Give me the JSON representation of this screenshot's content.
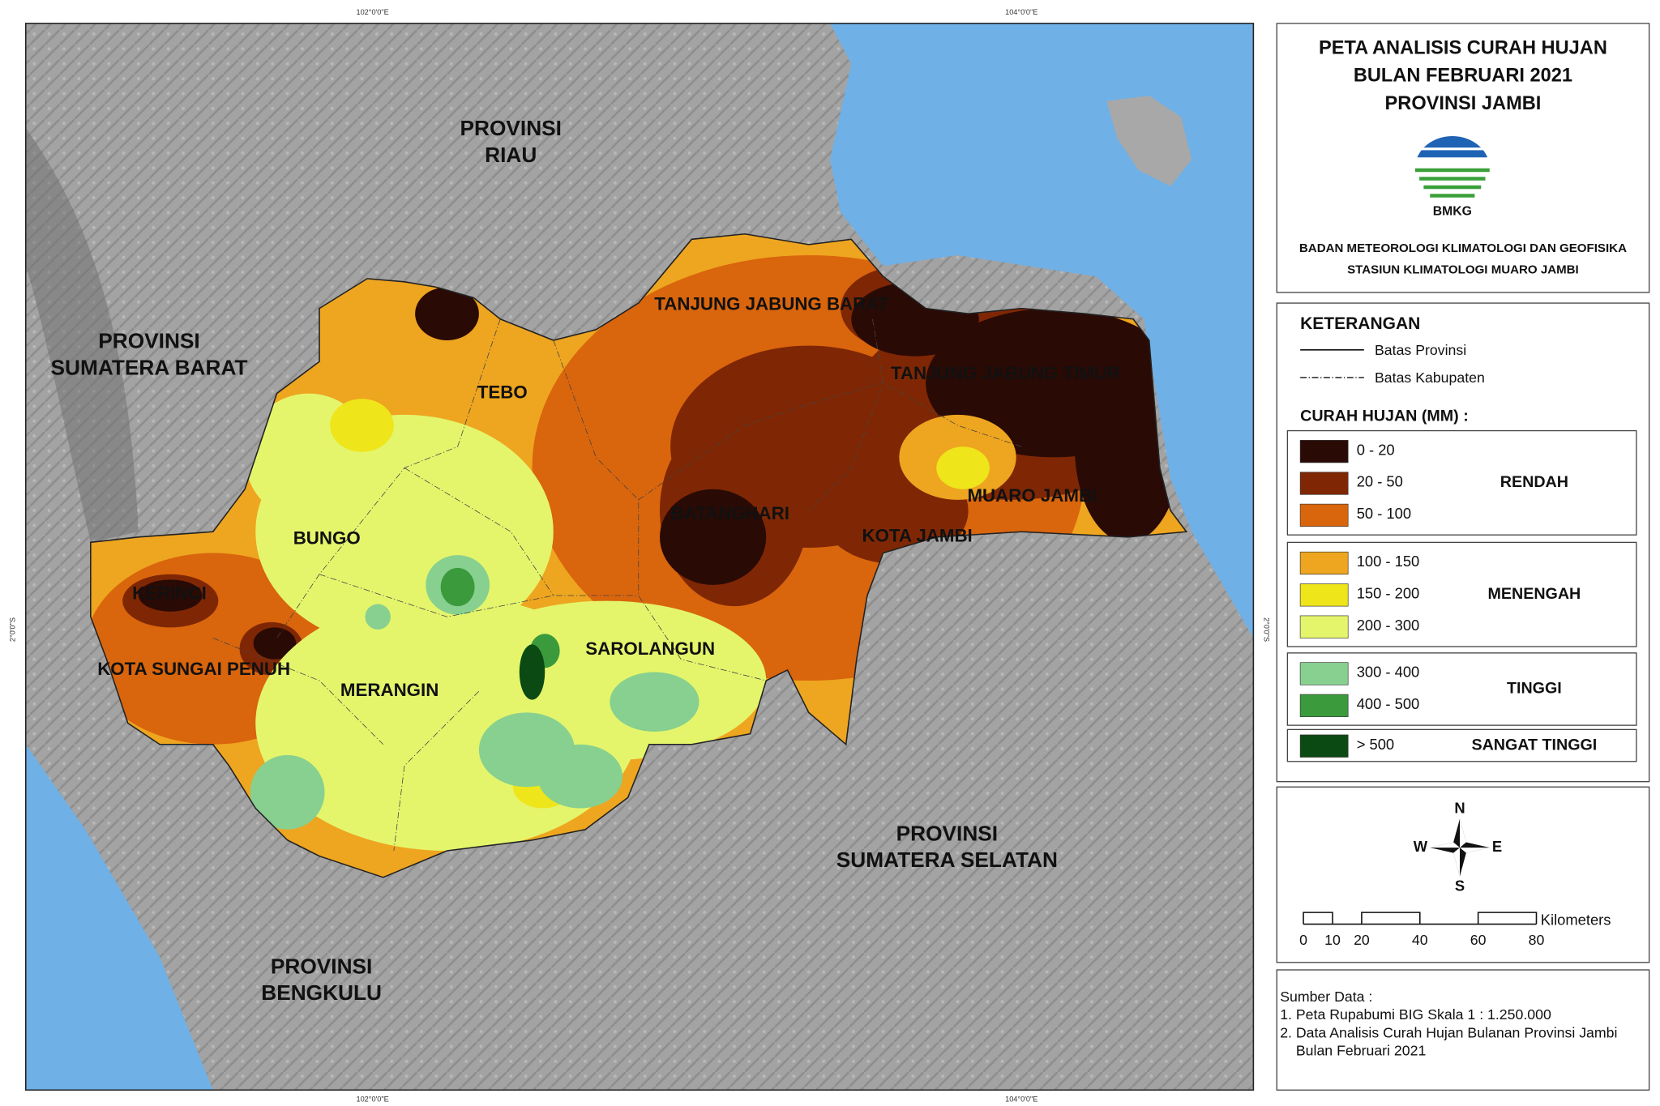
{
  "graticule": {
    "top": [
      "102°0'0\"E",
      "104°0'0\"E"
    ],
    "bottom": [
      "102°0'0\"E",
      "104°0'0\"E"
    ],
    "left": [
      "2°0'0\"S"
    ],
    "right": [
      "2°0'0\"S"
    ]
  },
  "provinces": [
    "PROVINSI",
    "RIAU",
    "PROVINSI",
    "SUMATERA BARAT",
    "PROVINSI",
    "SUMATERA SELATAN",
    "PROVINSI",
    "BENGKULU"
  ],
  "regions": [
    "TANJUNG JABUNG BARAT",
    "TANJUNG JABUNG TIMUR",
    "TEBO",
    "BUNGO",
    "BATANGHARI",
    "MUARO JAMBI",
    "KOTA JAMBI",
    "KERINCI",
    "KOTA SUNGAI PENUH",
    "MERANGIN",
    "SAROLANGUN"
  ],
  "title": [
    "PETA ANALISIS CURAH HUJAN",
    "BULAN FEBRUARI 2021",
    "PROVINSI JAMBI"
  ],
  "logo_text": "BMKG",
  "agency": [
    "BADAN METEOROLOGI KLIMATOLOGI DAN GEOFISIKA",
    "STASIUN KLIMATOLOGI MUARO JAMBI"
  ],
  "legend": {
    "title": "KETERANGAN",
    "lines": [
      "Batas Provinsi",
      "Batas Kabupaten"
    ],
    "rainfall_title": "CURAH HUJAN (MM) :",
    "groups": [
      {
        "name": "RENDAH",
        "classes": [
          {
            "label": "0 - 20",
            "color": "#2a0a05"
          },
          {
            "label": "20 - 50",
            "color": "#7f2704"
          },
          {
            "label": "50 - 100",
            "color": "#d9650d"
          }
        ]
      },
      {
        "name": "MENENGAH",
        "classes": [
          {
            "label": "100 - 150",
            "color": "#eea51f"
          },
          {
            "label": "150 - 200",
            "color": "#eee51b"
          },
          {
            "label": "200 - 300",
            "color": "#e4f56c"
          }
        ]
      },
      {
        "name": "TINGGI",
        "classes": [
          {
            "label": "300 - 400",
            "color": "#87d08f"
          },
          {
            "label": "400 - 500",
            "color": "#3a9a3c"
          }
        ]
      },
      {
        "name": "SANGAT TINGGI",
        "classes": [
          {
            "label": "> 500",
            "color": "#0b4a12"
          }
        ]
      }
    ]
  },
  "compass": {
    "n": "N",
    "s": "S",
    "e": "E",
    "w": "W"
  },
  "scale": {
    "ticks": [
      0,
      10,
      20,
      40,
      60,
      80
    ],
    "unit": "Kilometers"
  },
  "source": {
    "title": "Sumber Data :",
    "items": [
      "1. Peta Rupabumi BIG Skala 1 : 1.250.000",
      "2. Data Analisis Curah Hujan Bulanan Provinsi Jambi",
      "Bulan Februari 2021"
    ]
  }
}
